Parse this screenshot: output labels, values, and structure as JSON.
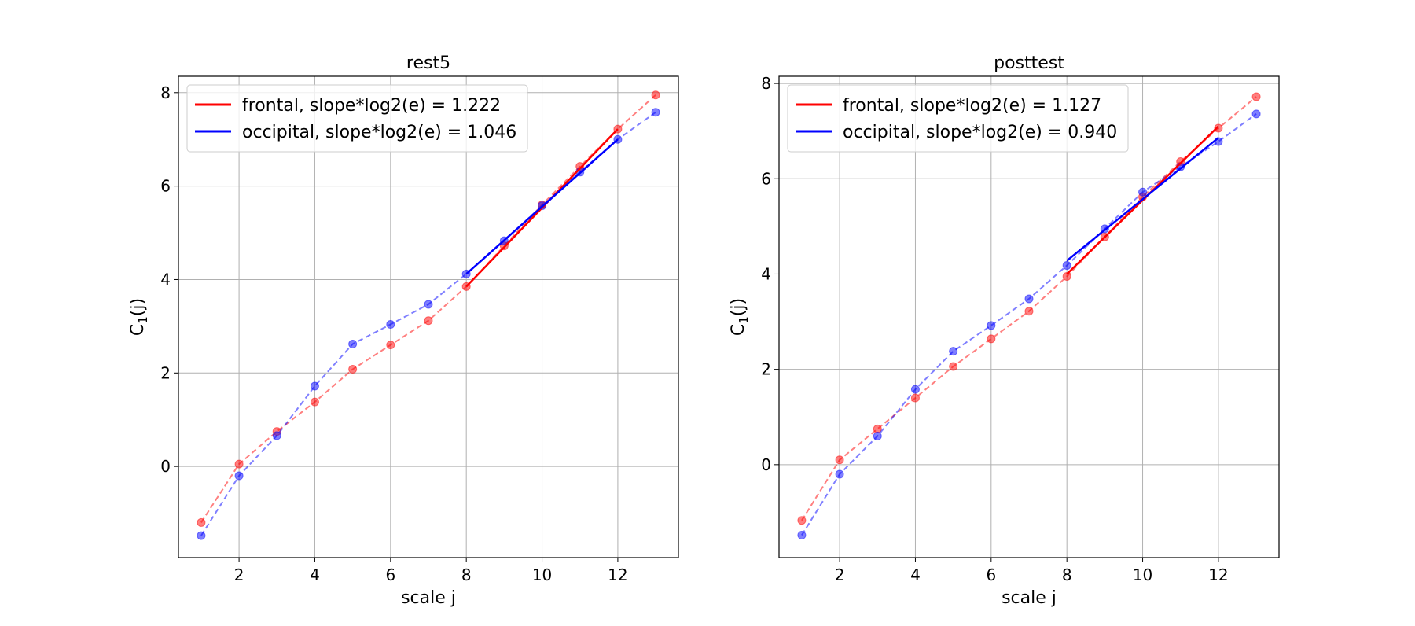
{
  "chart_data": [
    {
      "type": "line",
      "title": "rest5",
      "xlabel": "scale j",
      "ylabel": "C",
      "ylabel_sub": "1",
      "ylabel_suffix": "(j)",
      "xlim": [
        0.4,
        13.6
      ],
      "ylim": [
        -1.95,
        8.35
      ],
      "xticks": [
        2,
        4,
        6,
        8,
        10,
        12
      ],
      "yticks": [
        0,
        2,
        4,
        6,
        8
      ],
      "grid": true,
      "legend_position": "top-left",
      "series": [
        {
          "name": "frontal, slope*log2(e) = 1.222",
          "color": "#ff0000",
          "x": [
            1,
            2,
            3,
            4,
            5,
            6,
            7,
            8,
            9,
            10,
            11,
            12,
            13
          ],
          "y": [
            -1.2,
            0.05,
            0.75,
            1.38,
            2.08,
            2.6,
            3.12,
            3.85,
            4.72,
            5.6,
            6.42,
            7.22,
            7.95
          ],
          "fit": {
            "x": [
              8,
              12
            ],
            "y": [
              3.85,
              7.22
            ]
          }
        },
        {
          "name": "occipital, slope*log2(e) = 1.046",
          "color": "#0000ff",
          "x": [
            1,
            2,
            3,
            4,
            5,
            6,
            7,
            8,
            9,
            10,
            11,
            12,
            13
          ],
          "y": [
            -1.48,
            -0.2,
            0.66,
            1.72,
            2.62,
            3.04,
            3.47,
            4.12,
            4.83,
            5.58,
            6.3,
            7.0,
            7.58
          ],
          "fit": {
            "x": [
              8,
              12
            ],
            "y": [
              4.12,
              7.0
            ]
          }
        }
      ]
    },
    {
      "type": "line",
      "title": "posttest",
      "xlabel": "scale j",
      "ylabel": "C",
      "ylabel_sub": "1",
      "ylabel_suffix": "(j)",
      "xlim": [
        0.4,
        13.6
      ],
      "ylim": [
        -1.95,
        8.15
      ],
      "xticks": [
        2,
        4,
        6,
        8,
        10,
        12
      ],
      "yticks": [
        0,
        2,
        4,
        6,
        8
      ],
      "grid": true,
      "legend_position": "top-left",
      "series": [
        {
          "name": "frontal, slope*log2(e) = 1.127",
          "color": "#ff0000",
          "x": [
            1,
            2,
            3,
            4,
            5,
            6,
            7,
            8,
            9,
            10,
            11,
            12,
            13
          ],
          "y": [
            -1.17,
            0.1,
            0.75,
            1.4,
            2.06,
            2.64,
            3.22,
            3.95,
            4.78,
            5.62,
            6.36,
            7.06,
            7.72
          ],
          "fit": {
            "x": [
              8,
              12
            ],
            "y": [
              4.0,
              7.1
            ]
          }
        },
        {
          "name": "occipital, slope*log2(e) = 0.940",
          "color": "#0000ff",
          "x": [
            1,
            2,
            3,
            4,
            5,
            6,
            7,
            8,
            9,
            10,
            11,
            12,
            13
          ],
          "y": [
            -1.48,
            -0.2,
            0.6,
            1.58,
            2.38,
            2.92,
            3.48,
            4.18,
            4.95,
            5.72,
            6.25,
            6.78,
            7.36
          ],
          "fit": {
            "x": [
              8,
              12
            ],
            "y": [
              4.28,
              6.86
            ]
          }
        }
      ]
    }
  ]
}
